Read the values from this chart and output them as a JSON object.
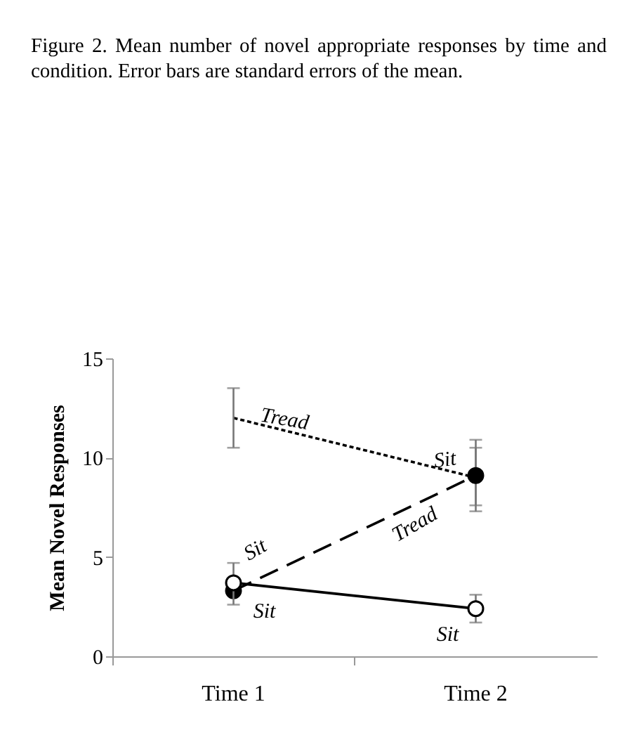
{
  "chart_data": {
    "type": "line",
    "title": "Figure 2.  Mean number of novel appropriate responses by time and condition. Error bars are standard errors of the mean.",
    "ylabel": "Mean Novel Responses",
    "categories": [
      "Time 1",
      "Time 2"
    ],
    "ylim": [
      0,
      15
    ],
    "yticks": [
      0,
      5,
      10,
      15
    ],
    "grid": false,
    "series": [
      {
        "color": "#000000",
        "values": [
          12.0,
          9.0
        ],
        "errors": [
          [
            10.5,
            13.5
          ],
          [
            7.3,
            10.9
          ]
        ],
        "line_style": "dotted",
        "marker": "none"
      },
      {
        "color": "#000000",
        "values": [
          3.3,
          9.1
        ],
        "errors": [
          null,
          [
            7.6,
            10.5
          ]
        ],
        "line_style": "dashed",
        "marker": "circle"
      },
      {
        "color": "#000000",
        "values": [
          3.7,
          2.4
        ],
        "errors": [
          [
            2.6,
            4.7
          ],
          [
            1.7,
            3.1
          ]
        ],
        "line_style": "solid",
        "marker": "circle"
      }
    ],
    "annotations": [
      {
        "text": "Tread",
        "x": "Time 1",
        "y": 12.0
      },
      {
        "text": "Sit",
        "x": "Time 2",
        "y": 9.0
      },
      {
        "text": "Tread",
        "x": "Time 2",
        "y": 9.1
      },
      {
        "text": "Sit",
        "x": "Time 1",
        "y": 3.3
      },
      {
        "text": "Sit",
        "x": "Time 1",
        "y": 3.7
      },
      {
        "text": "Sit",
        "x": "Time 2",
        "y": 2.4
      }
    ]
  }
}
